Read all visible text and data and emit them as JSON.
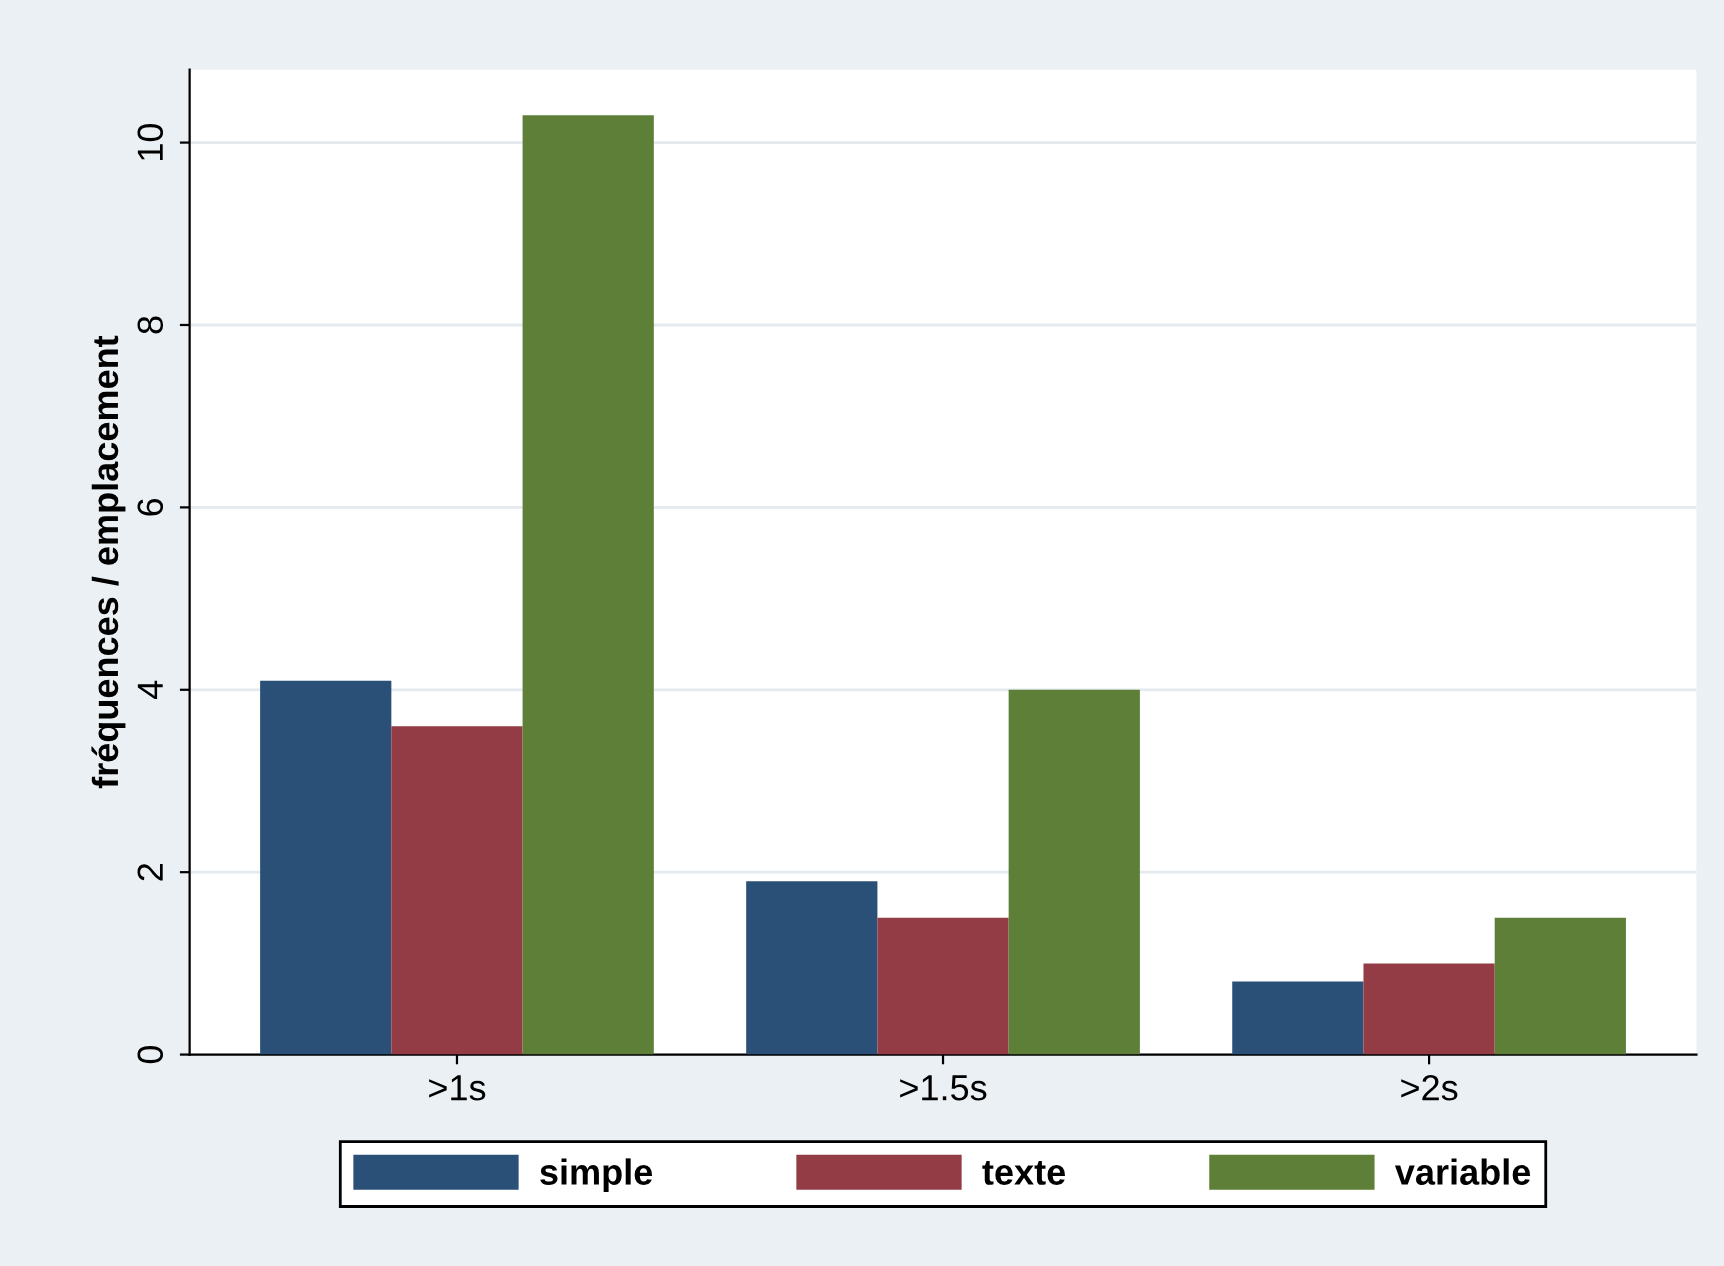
{
  "chart_data": {
    "type": "bar",
    "ylabel": "fréquences / emplacement",
    "categories": [
      ">1s",
      ">1.5s",
      ">2s"
    ],
    "series": [
      {
        "name": "simple",
        "color": "#2b5078",
        "values": [
          4.1,
          1.9,
          0.8
        ]
      },
      {
        "name": "texte",
        "color": "#943c45",
        "values": [
          3.6,
          1.5,
          1.0
        ]
      },
      {
        "name": "variable",
        "color": "#5e7f38",
        "values": [
          10.3,
          4.0,
          1.5
        ]
      }
    ],
    "ylim": [
      0,
      10.8
    ],
    "yticks": [
      0,
      2,
      4,
      6,
      8,
      10
    ],
    "grid": "y",
    "legend": "bottom"
  }
}
